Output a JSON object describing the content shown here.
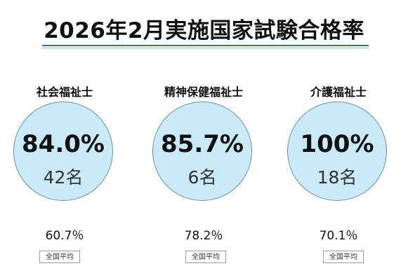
{
  "title": "2026年2月実施国家試験合格率",
  "exams": [
    {
      "name": "社会福祉士",
      "pass_rate": "84.0%",
      "passers": "42名",
      "national_avg": "60.7％",
      "national_avg_label": "全国平均"
    },
    {
      "name": "精神保健福祉士",
      "pass_rate": "85.7%",
      "passers": "6名",
      "national_avg": "78.2％",
      "national_avg_label": "全国平均"
    },
    {
      "name": "介護福祉士",
      "pass_rate": "100%",
      "passers": "18名",
      "national_avg": "70.1％",
      "national_avg_label": "全国平均"
    }
  ],
  "colors": {
    "circle_fill": "#cce9f8",
    "circle_border": "#6a8fa5",
    "title_rule": "#3d6a8e"
  }
}
